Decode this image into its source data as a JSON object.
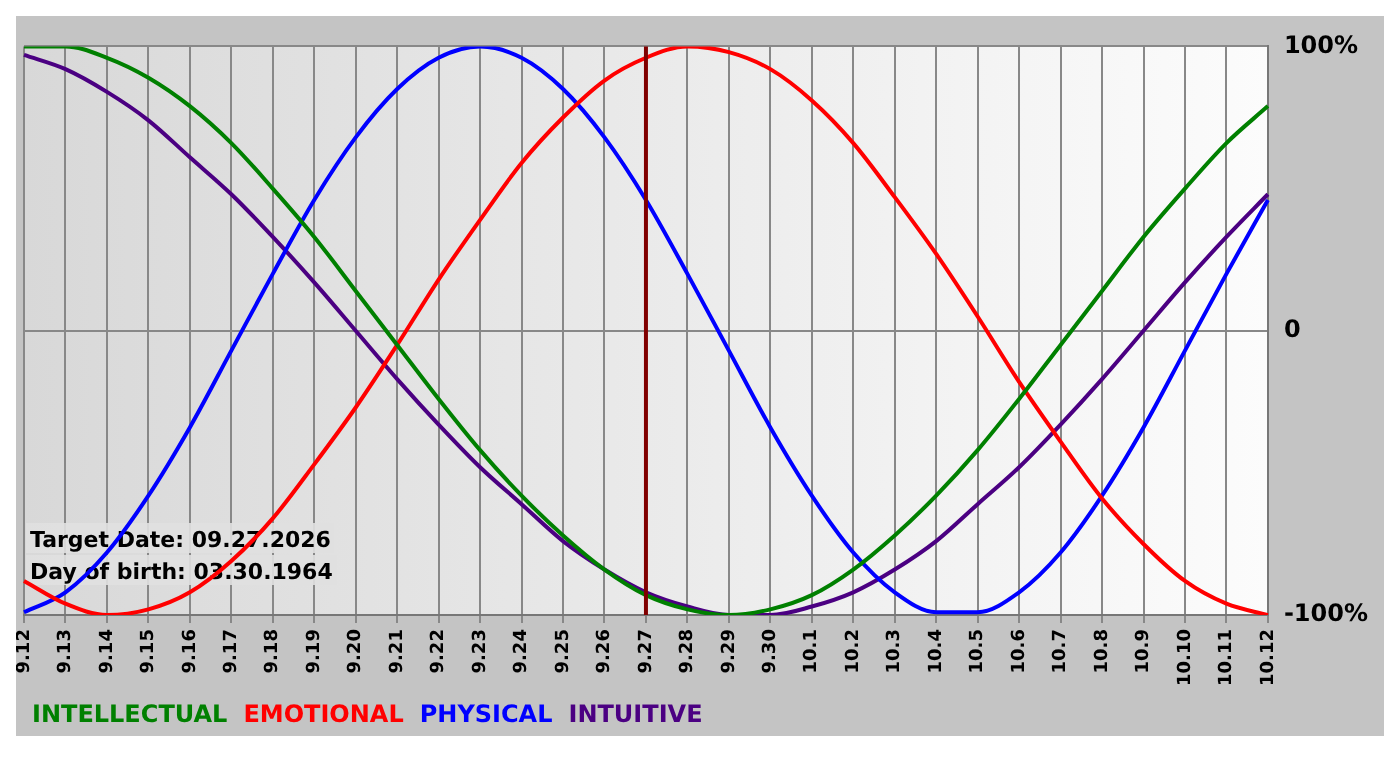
{
  "chart_data": {
    "type": "line",
    "categories": [
      "9.12",
      "9.13",
      "9.14",
      "9.15",
      "9.16",
      "9.17",
      "9.18",
      "9.19",
      "9.20",
      "9.21",
      "9.22",
      "9.23",
      "9.24",
      "9.25",
      "9.26",
      "9.27",
      "9.28",
      "9.29",
      "9.30",
      "10.1",
      "10.2",
      "10.3",
      "10.4",
      "10.5",
      "10.6",
      "10.7",
      "10.8",
      "10.9",
      "10.10",
      "10.11",
      "10.12"
    ],
    "series": [
      {
        "name": "INTELLECTUAL",
        "color": "#008000",
        "values": [
          100,
          100,
          96,
          89,
          79,
          66,
          50,
          33,
          14,
          -5,
          -24,
          -42,
          -58,
          -72,
          -84,
          -93,
          -98,
          -100,
          -98,
          -93,
          -84,
          -72,
          -58,
          -42,
          -24,
          -5,
          14,
          33,
          50,
          66,
          79
        ]
      },
      {
        "name": "EMOTIONAL",
        "color": "#ff0000",
        "values": [
          -88,
          -96,
          -100,
          -98,
          -92,
          -81,
          -66,
          -47,
          -27,
          -5,
          18,
          39,
          59,
          75,
          88,
          96,
          100,
          98,
          92,
          81,
          66,
          47,
          27,
          5,
          -18,
          -39,
          -59,
          -75,
          -88,
          -96,
          -100
        ]
      },
      {
        "name": "PHYSICAL",
        "color": "#0000ff",
        "values": [
          -99,
          -92,
          -78,
          -58,
          -34,
          -7,
          20,
          46,
          68,
          85,
          96,
          100,
          96,
          85,
          68,
          46,
          20,
          -7,
          -34,
          -58,
          -78,
          -92,
          -99,
          -99,
          -92,
          -78,
          -58,
          -34,
          -7,
          20,
          46
        ]
      },
      {
        "name": "INTUITIVE",
        "color": "#4b0082",
        "values": [
          97,
          92,
          84,
          74,
          61,
          48,
          33,
          17,
          0,
          -17,
          -33,
          -48,
          -61,
          -74,
          -84,
          -92,
          -97,
          -100,
          -100,
          -97,
          -92,
          -84,
          -74,
          -61,
          -48,
          -33,
          -17,
          0,
          17,
          33,
          48
        ]
      }
    ],
    "ylim": [
      -100,
      100
    ],
    "yticks": [
      {
        "value": 100,
        "label": "100%"
      },
      0,
      {
        "value": -100,
        "label": "-100%"
      }
    ],
    "grid": true,
    "legend": "bottom",
    "marker": "none",
    "line_style": "solid",
    "ref_lines": [
      {
        "axis": "x",
        "value": "9.27",
        "color": "#800000"
      }
    ],
    "annotations": [
      "Target Date: 09.27.2026",
      "Day of birth: 03.30.1964"
    ]
  }
}
